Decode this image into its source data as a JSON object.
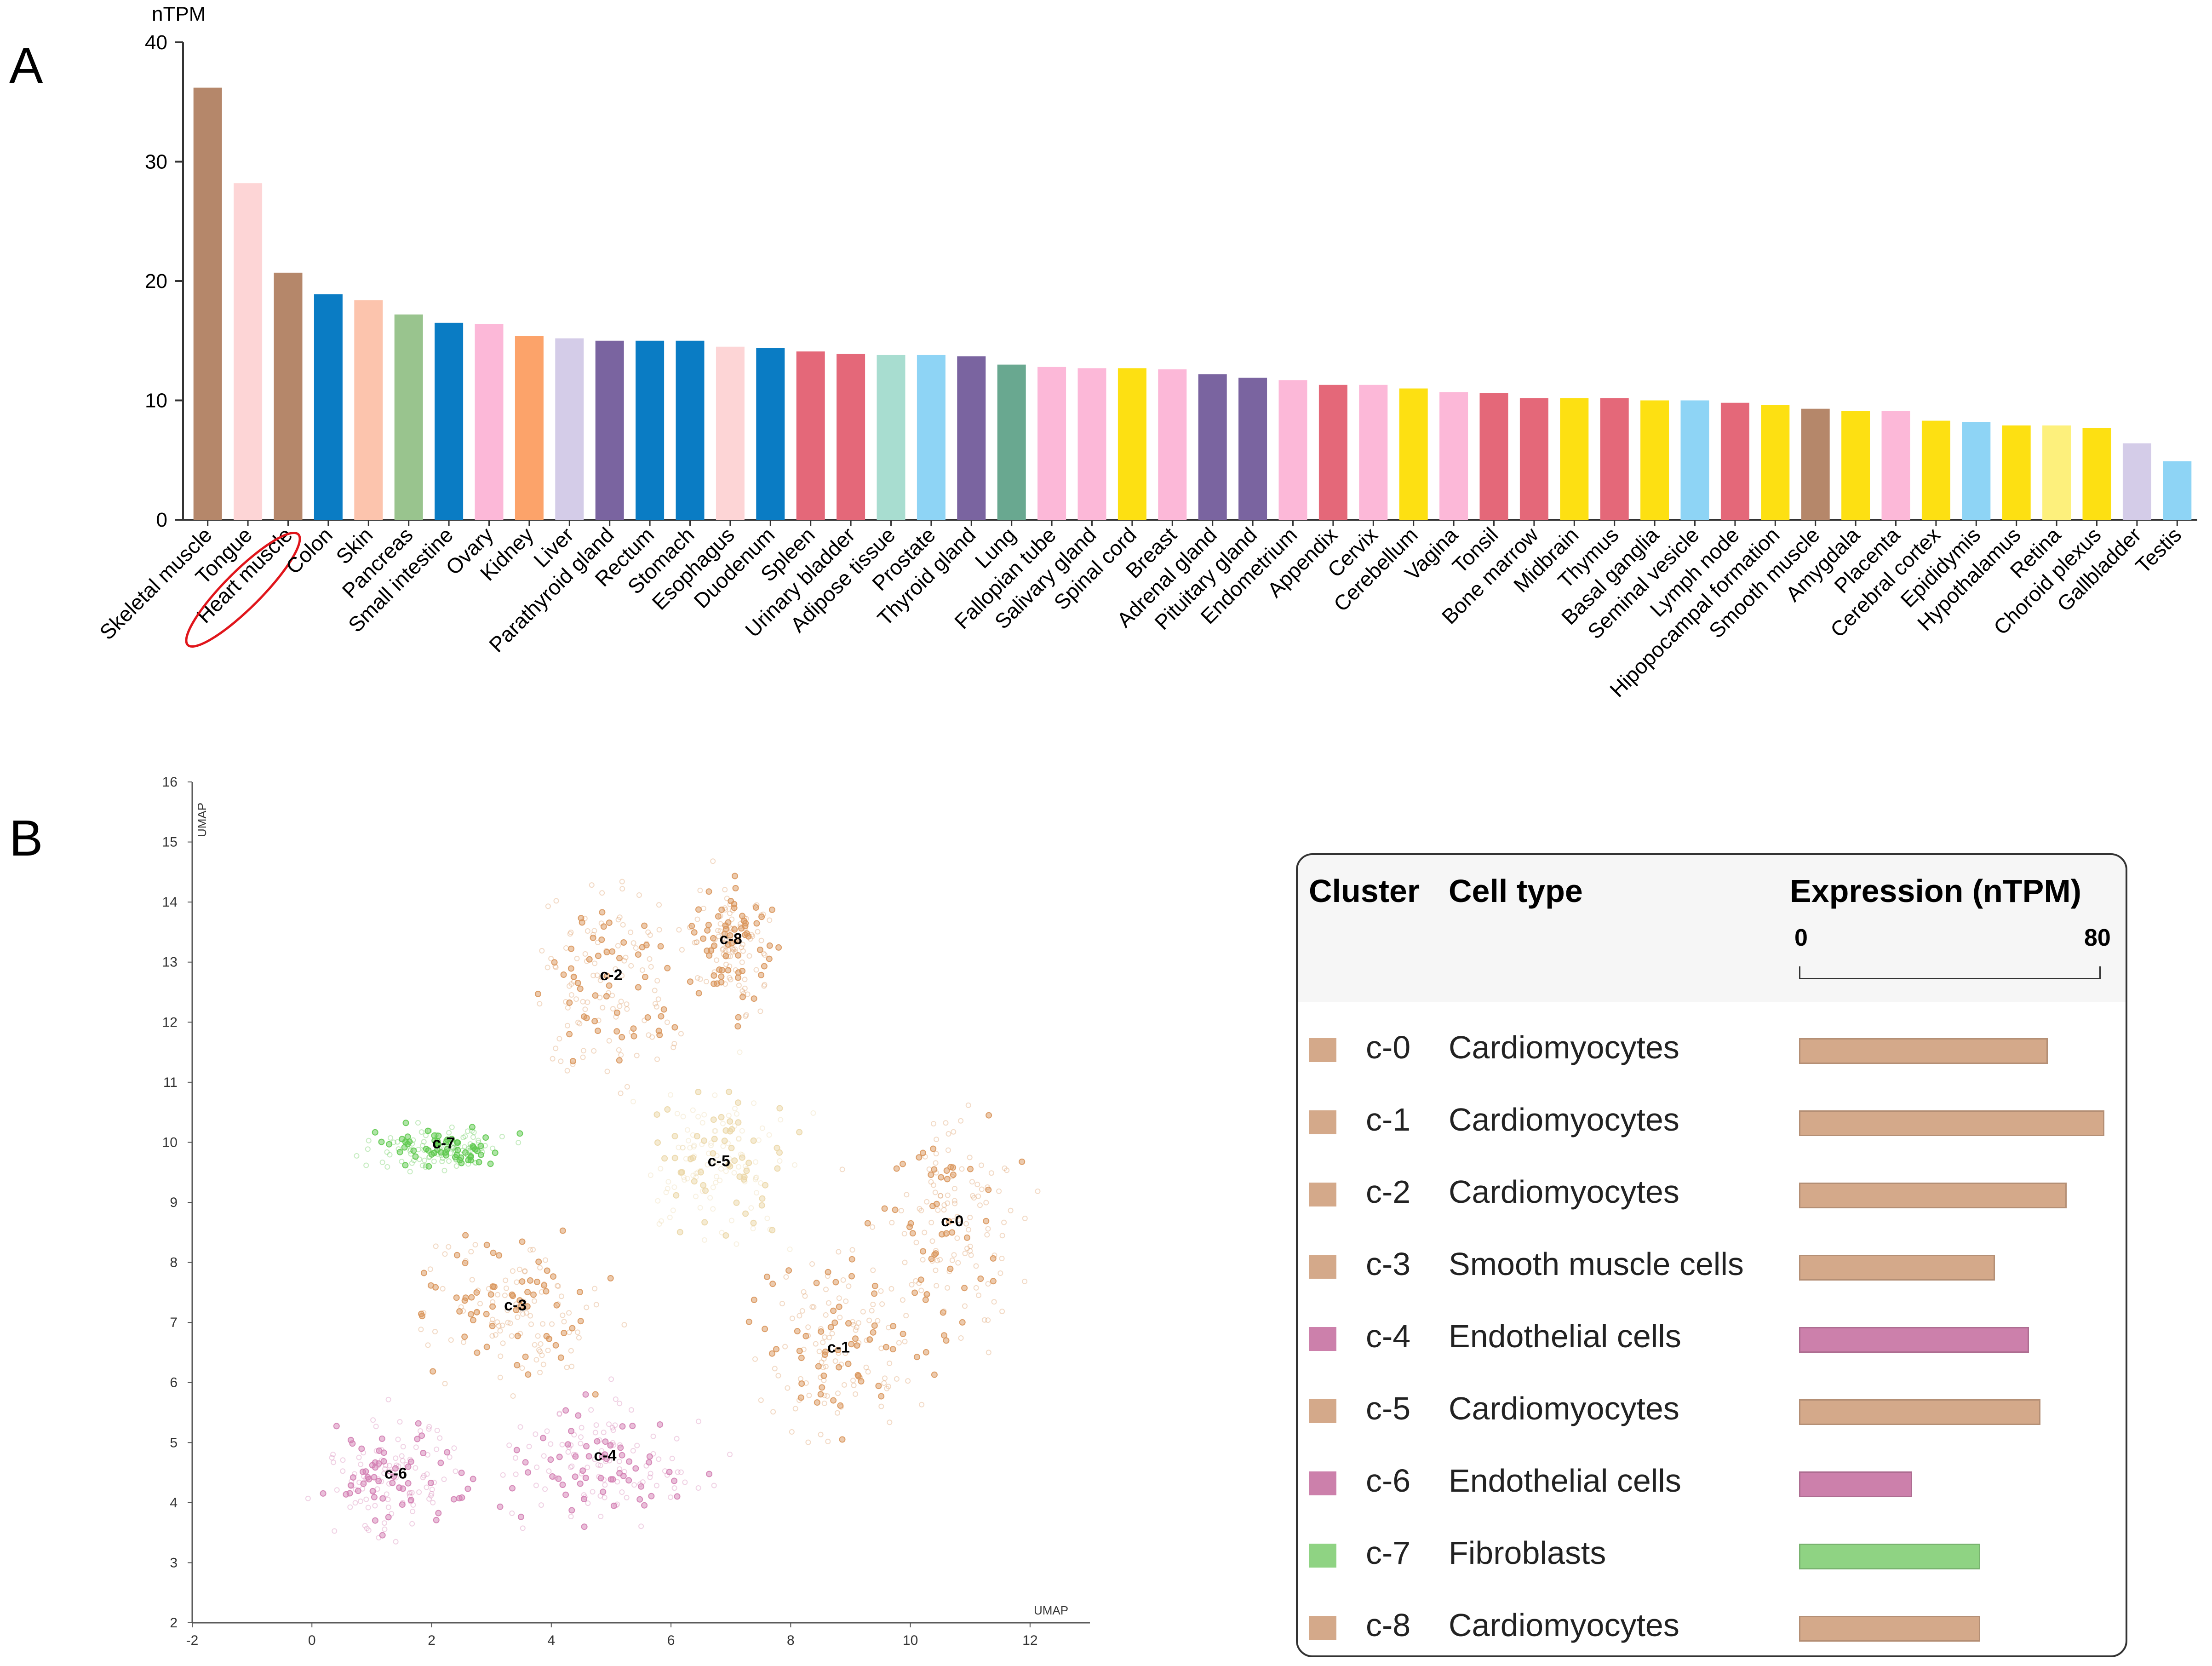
{
  "panel_a_letter": "A",
  "panel_b_letter": "B",
  "chart_data": [
    {
      "type": "bar",
      "ylabel": "nTPM",
      "ylim": [
        0,
        40
      ],
      "yticks": [
        0,
        10,
        20,
        30,
        40
      ],
      "highlight": "Heart muscle",
      "categories": [
        "Skeletal muscle",
        "Tongue",
        "Heart muscle",
        "Colon",
        "Skin",
        "Pancreas",
        "Small intestine",
        "Ovary",
        "Kidney",
        "Liver",
        "Parathyroid gland",
        "Rectum",
        "Stomach",
        "Esophagus",
        "Duodenum",
        "Spleen",
        "Urinary bladder",
        "Adipose tissue",
        "Prostate",
        "Thyroid gland",
        "Lung",
        "Fallopian tube",
        "Salivary gland",
        "Spinal cord",
        "Breast",
        "Adrenal gland",
        "Pituitary gland",
        "Endometrium",
        "Appendix",
        "Cervix",
        "Cerebellum",
        "Vagina",
        "Tonsil",
        "Bone marrow",
        "Midbrain",
        "Thymus",
        "Basal ganglia",
        "Seminal vesicle",
        "Lymph node",
        "Hipopocampal formation",
        "Smooth muscle",
        "Amygdala",
        "Placenta",
        "Cerebral cortex",
        "Epididymis",
        "Hypothalamus",
        "Retina",
        "Choroid plexus",
        "Gallbladder",
        "Testis"
      ],
      "values": [
        36.2,
        28.2,
        20.7,
        18.9,
        18.4,
        17.2,
        16.5,
        16.4,
        15.4,
        15.2,
        15.0,
        15.0,
        15.0,
        14.5,
        14.4,
        14.1,
        13.9,
        13.8,
        13.8,
        13.7,
        13.0,
        12.8,
        12.7,
        12.7,
        12.6,
        12.2,
        11.9,
        11.7,
        11.3,
        11.3,
        11.0,
        10.7,
        10.6,
        10.2,
        10.2,
        10.2,
        10.0,
        10.0,
        9.8,
        9.6,
        9.3,
        9.1,
        9.1,
        8.3,
        8.2,
        7.9,
        7.9,
        7.7,
        6.4,
        4.9
      ],
      "colors": [
        "#b5876a",
        "#fdd5d6",
        "#b5876a",
        "#0a7cc4",
        "#fcc4ad",
        "#99c48e",
        "#0a7cc4",
        "#fcb8d8",
        "#fca36a",
        "#d4cce8",
        "#7a64a0",
        "#0a7cc4",
        "#0a7cc4",
        "#fdd5d6",
        "#0a7cc4",
        "#e46879",
        "#e46879",
        "#a8ddd0",
        "#8ed4f5",
        "#7a64a0",
        "#69a890",
        "#fcb8d8",
        "#fcb8d8",
        "#fde012",
        "#fcb8d8",
        "#7a64a0",
        "#7a64a0",
        "#fcb8d8",
        "#e46879",
        "#fcb8d8",
        "#fde012",
        "#fcb8d8",
        "#e46879",
        "#e46879",
        "#fde012",
        "#e46879",
        "#fde012",
        "#8ed4f5",
        "#e46879",
        "#fde012",
        "#b5876a",
        "#fde012",
        "#fcb8d8",
        "#fde012",
        "#8ed4f5",
        "#fde012",
        "#fdf07c",
        "#fde012",
        "#d4cce8",
        "#8ed4f5"
      ]
    },
    {
      "type": "scatter",
      "xlabel": "UMAP",
      "ylabel": "UMAP",
      "xlim": [
        -2,
        13
      ],
      "ylim": [
        2,
        16
      ],
      "xticks": [
        -2,
        0,
        2,
        4,
        6,
        8,
        10,
        12
      ],
      "yticks": [
        2,
        3,
        4,
        5,
        6,
        7,
        8,
        9,
        10,
        11,
        12,
        13,
        14,
        15,
        16
      ],
      "clusters": [
        {
          "label": "c-0",
          "x": 10.7,
          "y": 8.6,
          "color": "#d9965c"
        },
        {
          "label": "c-1",
          "x": 8.8,
          "y": 6.5,
          "color": "#d9965c"
        },
        {
          "label": "c-2",
          "x": 5.0,
          "y": 12.7,
          "color": "#d9965c"
        },
        {
          "label": "c-3",
          "x": 3.4,
          "y": 7.2,
          "color": "#d9965c"
        },
        {
          "label": "c-4",
          "x": 4.9,
          "y": 4.7,
          "color": "#d37fb3"
        },
        {
          "label": "c-5",
          "x": 6.8,
          "y": 9.6,
          "color": "#ebd7a8"
        },
        {
          "label": "c-6",
          "x": 1.4,
          "y": 4.4,
          "color": "#d37fb3"
        },
        {
          "label": "c-7",
          "x": 2.2,
          "y": 9.9,
          "color": "#5fc94f"
        },
        {
          "label": "c-8",
          "x": 7.0,
          "y": 13.3,
          "color": "#d9965c"
        }
      ]
    }
  ],
  "legend": {
    "col_cluster": "Cluster",
    "col_celltype": "Cell type",
    "col_expression": "Expression (nTPM)",
    "scale_min": "0",
    "scale_max": "80",
    "scale_max_value": 80,
    "rows": [
      {
        "cluster": "c-0",
        "cell_type": "Cardiomyocytes",
        "value": 66,
        "color": "#d4a98a"
      },
      {
        "cluster": "c-1",
        "cell_type": "Cardiomyocytes",
        "value": 81,
        "color": "#d4a98a"
      },
      {
        "cluster": "c-2",
        "cell_type": "Cardiomyocytes",
        "value": 71,
        "color": "#d4a98a"
      },
      {
        "cluster": "c-3",
        "cell_type": "Smooth muscle cells",
        "value": 52,
        "color": "#d4a98a"
      },
      {
        "cluster": "c-4",
        "cell_type": "Endothelial cells",
        "value": 61,
        "color": "#cc80ab"
      },
      {
        "cluster": "c-5",
        "cell_type": "Cardiomyocytes",
        "value": 64,
        "color": "#d4a98a"
      },
      {
        "cluster": "c-6",
        "cell_type": "Endothelial cells",
        "value": 30,
        "color": "#cc80ab"
      },
      {
        "cluster": "c-7",
        "cell_type": "Fibroblasts",
        "value": 48,
        "color": "#8fd383"
      },
      {
        "cluster": "c-8",
        "cell_type": "Cardiomyocytes",
        "value": 48,
        "color": "#d4a98a"
      }
    ]
  }
}
